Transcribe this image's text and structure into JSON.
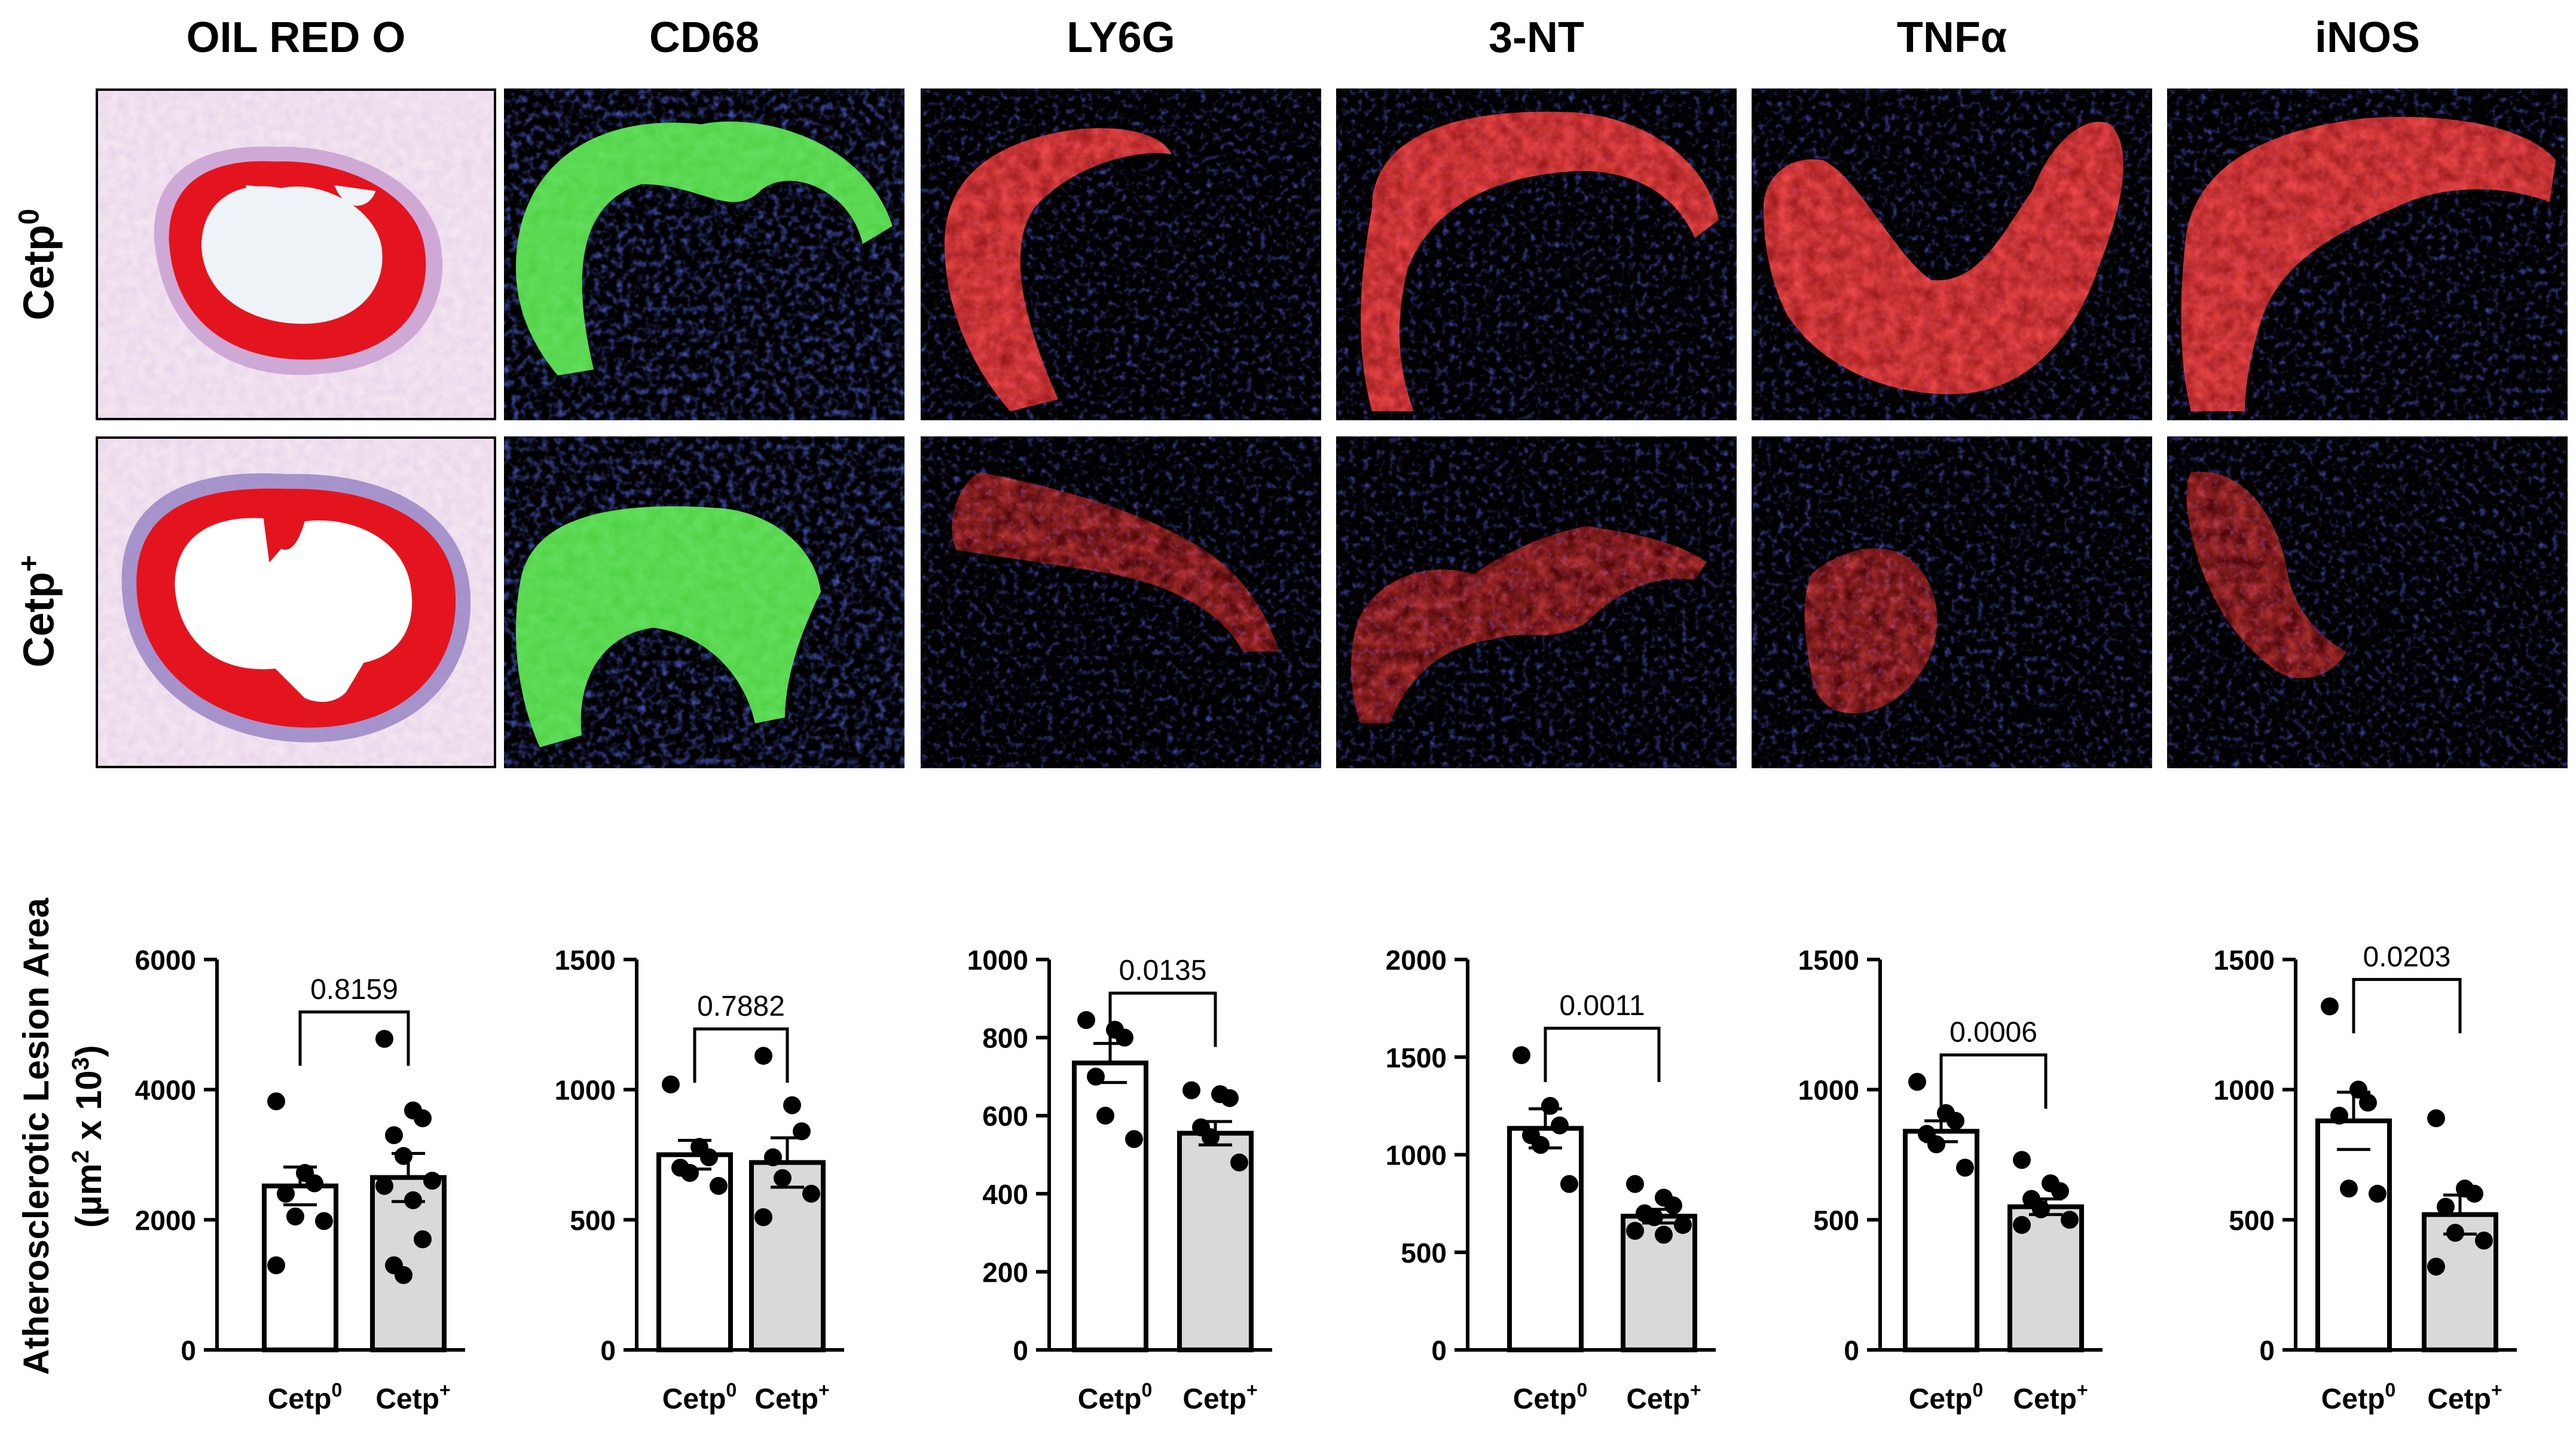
{
  "headers": [
    "OIL RED O",
    "CD68",
    "LY6G",
    "3-NT",
    "TNFα",
    "iNOS"
  ],
  "row_labels": [
    {
      "base": "Cetp",
      "sup": "0"
    },
    {
      "base": "Cetp",
      "sup": "+"
    }
  ],
  "ylabel": {
    "line1": "Atherosclerotic Lesion Area",
    "line2_parts": [
      "(µm",
      "2",
      " x 10",
      "3",
      ")"
    ]
  },
  "group_labels": [
    {
      "base": "Cetp",
      "sup": "0"
    },
    {
      "base": "Cetp",
      "sup": "+"
    }
  ],
  "colors": {
    "bar_cetp0": "#ffffff",
    "bar_cetp_plus": "#d9d9d9",
    "stroke": "#000000",
    "oil_red": "#e4141e",
    "cd68_green": "#3fc62b",
    "fluor_red": "#f21a1a",
    "dapi_blue": "#1b2bd6"
  },
  "chart_data": [
    {
      "type": "bar",
      "title": "OIL RED O",
      "categories": [
        "Cetp0",
        "Cetp+"
      ],
      "ylim": [
        0,
        6000
      ],
      "yticks": [
        0,
        2000,
        4000,
        6000
      ],
      "means": [
        2520,
        2650
      ],
      "sem": [
        290,
        370
      ],
      "points": [
        [
          3820,
          2720,
          2560,
          2400,
          2050,
          1980,
          1300
        ],
        [
          4780,
          3680,
          3560,
          3300,
          2980,
          2600,
          2520,
          2300,
          1700,
          1300,
          1150
        ]
      ],
      "p_value": "0.8159"
    },
    {
      "type": "bar",
      "title": "CD68",
      "categories": [
        "Cetp0",
        "Cetp+"
      ],
      "ylim": [
        0,
        1500
      ],
      "yticks": [
        0,
        500,
        1000,
        1500
      ],
      "means": [
        750,
        720
      ],
      "sem": [
        55,
        95
      ],
      "points": [
        [
          1020,
          780,
          740,
          700,
          680,
          630
        ],
        [
          1130,
          940,
          840,
          740,
          660,
          600,
          510
        ]
      ],
      "p_value": "0.7882"
    },
    {
      "type": "bar",
      "title": "LY6G",
      "categories": [
        "Cetp0",
        "Cetp+"
      ],
      "ylim": [
        0,
        1000
      ],
      "yticks": [
        0,
        200,
        400,
        600,
        800,
        1000
      ],
      "means": [
        735,
        555
      ],
      "sem": [
        50,
        30
      ],
      "points": [
        [
          845,
          820,
          800,
          700,
          600,
          540
        ],
        [
          665,
          655,
          645,
          570,
          545,
          480
        ]
      ],
      "p_value": "0.0135"
    },
    {
      "type": "bar",
      "title": "3-NT",
      "categories": [
        "Cetp0",
        "Cetp+"
      ],
      "ylim": [
        0,
        2000
      ],
      "yticks": [
        0,
        500,
        1000,
        1500,
        2000
      ],
      "means": [
        1135,
        685
      ],
      "sem": [
        100,
        35
      ],
      "points": [
        [
          1510,
          1250,
          1150,
          1100,
          1050,
          850
        ],
        [
          850,
          780,
          740,
          700,
          680,
          640,
          610,
          590
        ]
      ],
      "p_value": "0.0011"
    },
    {
      "type": "bar",
      "title": "TNFα",
      "categories": [
        "Cetp0",
        "Cetp+"
      ],
      "ylim": [
        0,
        1500
      ],
      "yticks": [
        0,
        500,
        1000,
        1500
      ],
      "means": [
        840,
        550
      ],
      "sem": [
        40,
        30
      ],
      "points": [
        [
          1030,
          910,
          880,
          830,
          790,
          700
        ],
        [
          730,
          640,
          610,
          580,
          540,
          500,
          480
        ]
      ],
      "p_value": "0.0006"
    },
    {
      "type": "bar",
      "title": "iNOS",
      "categories": [
        "Cetp0",
        "Cetp+"
      ],
      "ylim": [
        0,
        1500
      ],
      "yticks": [
        0,
        500,
        1000,
        1500
      ],
      "means": [
        880,
        520
      ],
      "sem": [
        110,
        75
      ],
      "points": [
        [
          1320,
          1000,
          950,
          900,
          620,
          600
        ],
        [
          890,
          620,
          600,
          550,
          450,
          420,
          320
        ]
      ],
      "p_value": "0.0203"
    }
  ]
}
